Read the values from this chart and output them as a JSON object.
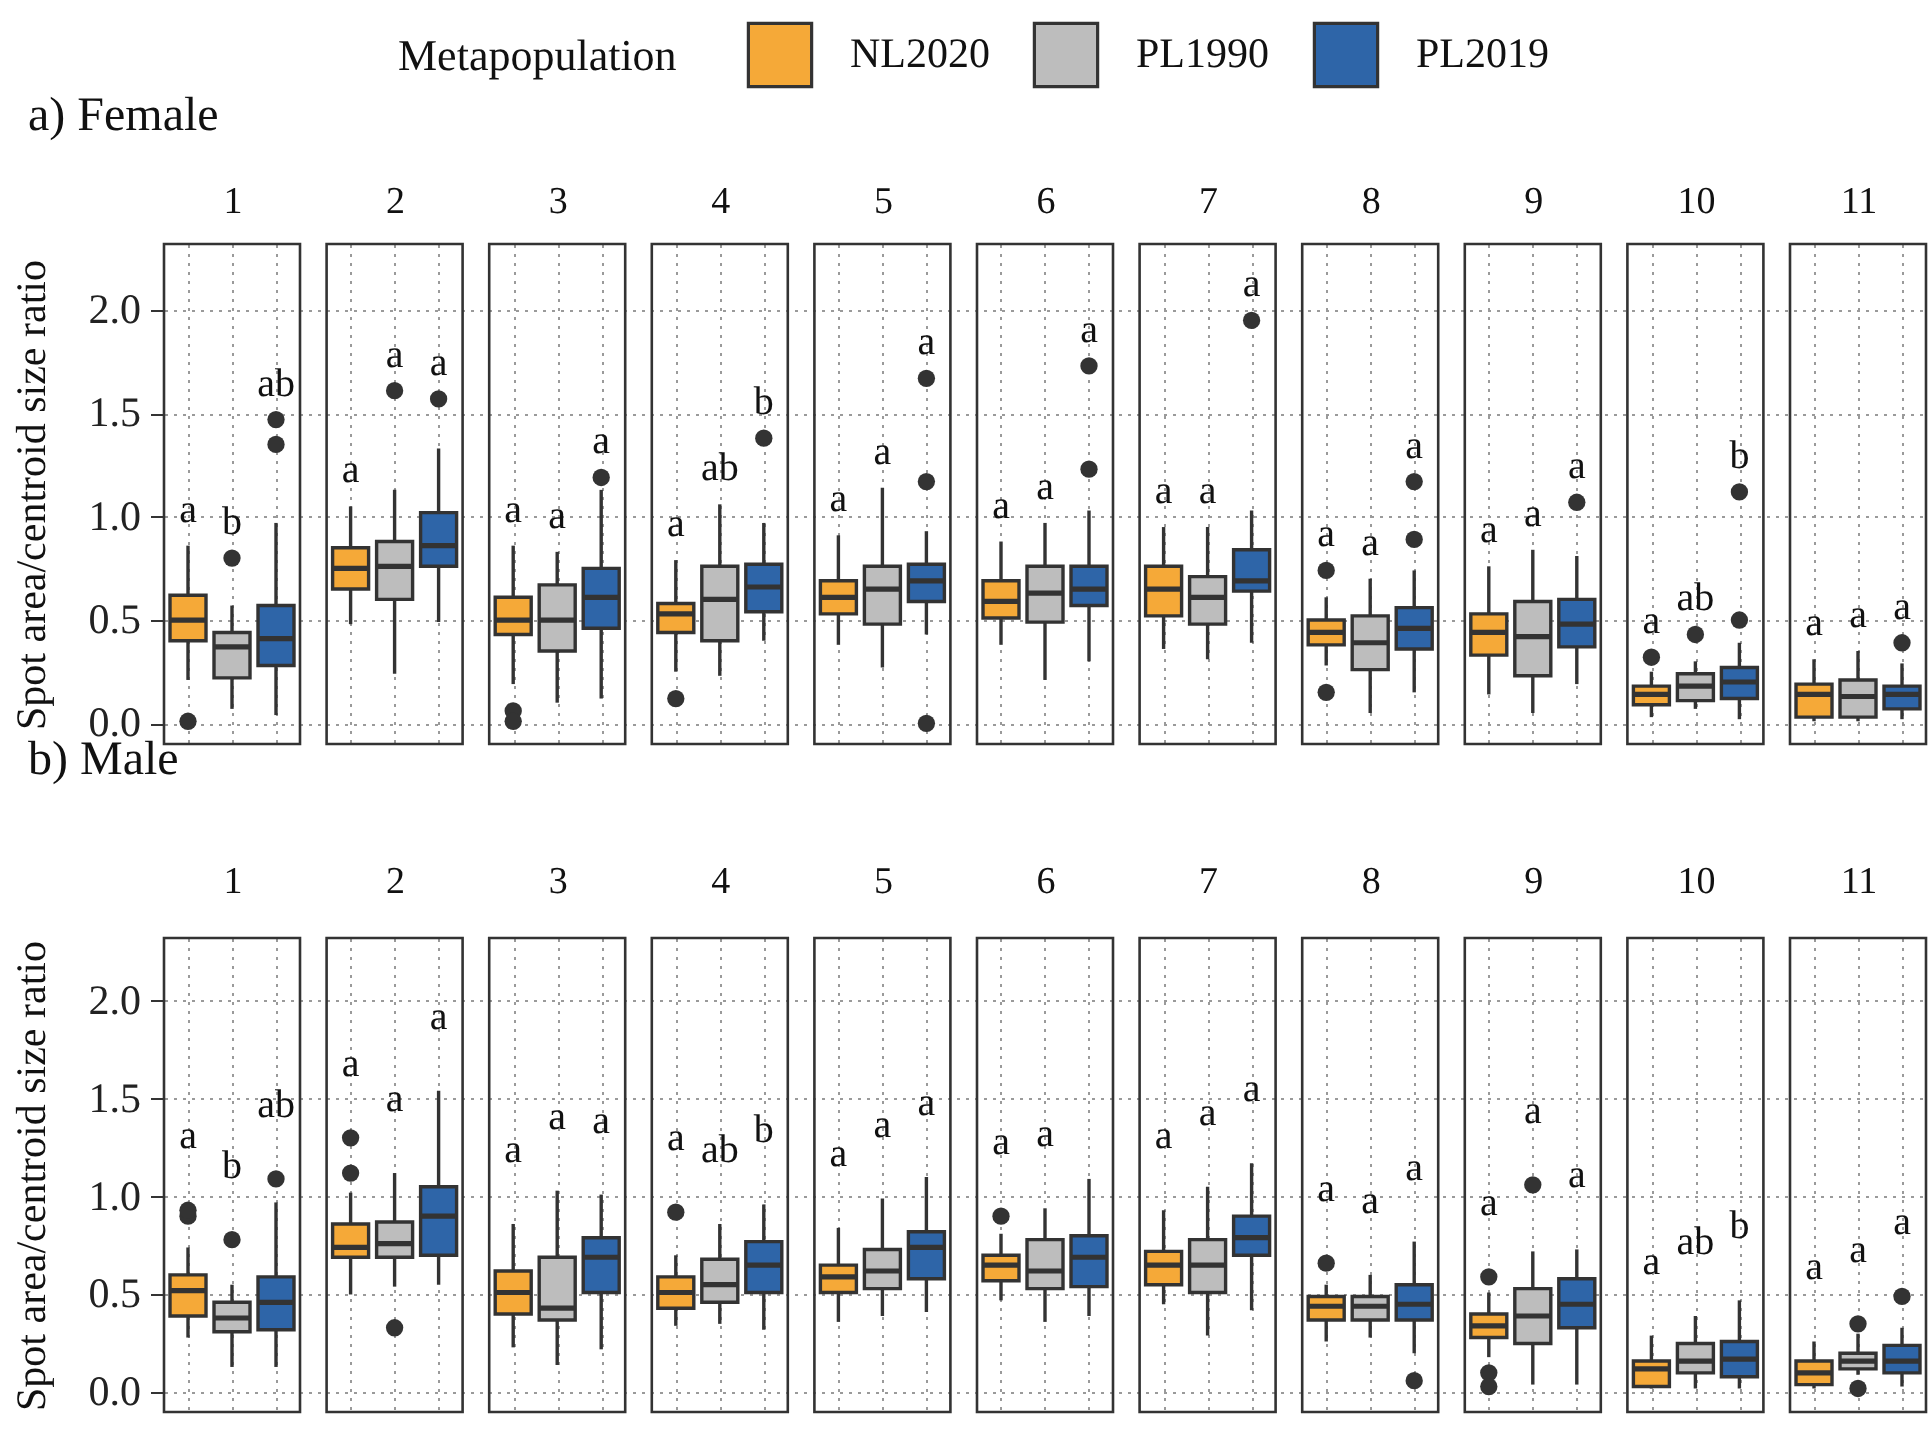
{
  "chart_data": [
    {
      "type": "box",
      "title": "a) Female",
      "ylabel": "Spot area/centroid size ratio",
      "legend": "top",
      "legend_title": "Metapopulation",
      "grid": true,
      "categories": [
        "1",
        "2",
        "3",
        "4",
        "5",
        "6",
        "7",
        "8",
        "9",
        "10",
        "11"
      ],
      "ylim": [
        -0.1,
        2.32
      ],
      "yticks": [
        {
          "value": 0,
          "label": "0.0"
        },
        {
          "value": 0.5,
          "label": "0.5"
        },
        {
          "value": 1,
          "label": "1.0"
        },
        {
          "value": 1.5,
          "label": "1.5"
        },
        {
          "value": 2,
          "label": "2.0"
        }
      ],
      "series": [
        {
          "name": "NL2020",
          "color": "#f5a938",
          "value_labels": [
            "a",
            "a",
            "a",
            "a",
            "a",
            "a",
            "a",
            "a",
            "a",
            "a",
            "a"
          ],
          "boxes": [
            {
              "low": 0.21,
              "q1": 0.4,
              "median": 0.5,
              "q3": 0.62,
              "high": 0.86,
              "outliers": [
                0.01
              ]
            },
            {
              "low": 0.48,
              "q1": 0.65,
              "median": 0.75,
              "q3": 0.85,
              "high": 1.05
            },
            {
              "low": 0.19,
              "q1": 0.43,
              "median": 0.5,
              "q3": 0.61,
              "high": 0.86,
              "outliers": [
                0.06,
                0.01
              ]
            },
            {
              "low": 0.25,
              "q1": 0.44,
              "median": 0.53,
              "q3": 0.58,
              "high": 0.79,
              "outliers": [
                0.12
              ]
            },
            {
              "low": 0.38,
              "q1": 0.53,
              "median": 0.61,
              "q3": 0.69,
              "high": 0.91
            },
            {
              "low": 0.38,
              "q1": 0.51,
              "median": 0.59,
              "q3": 0.69,
              "high": 0.88
            },
            {
              "low": 0.36,
              "q1": 0.52,
              "median": 0.65,
              "q3": 0.76,
              "high": 0.95
            },
            {
              "low": 0.28,
              "q1": 0.38,
              "median": 0.44,
              "q3": 0.5,
              "high": 0.61,
              "outliers": [
                0.74,
                0.15
              ]
            },
            {
              "low": 0.14,
              "q1": 0.33,
              "median": 0.44,
              "q3": 0.53,
              "high": 0.76
            },
            {
              "low": 0.03,
              "q1": 0.09,
              "median": 0.14,
              "q3": 0.18,
              "high": 0.25,
              "outliers": [
                0.32
              ]
            },
            {
              "low": 0.01,
              "q1": 0.03,
              "median": 0.14,
              "q3": 0.19,
              "high": 0.31
            }
          ]
        },
        {
          "name": "PL1990",
          "color": "#bdbdbd",
          "value_labels": [
            "b",
            "a",
            "a",
            "ab",
            "a",
            "a",
            "a",
            "a",
            "a",
            "ab",
            "a"
          ],
          "boxes": [
            {
              "low": 0.07,
              "q1": 0.22,
              "median": 0.37,
              "q3": 0.44,
              "high": 0.57,
              "outliers": [
                0.8
              ]
            },
            {
              "low": 0.24,
              "q1": 0.6,
              "median": 0.76,
              "q3": 0.88,
              "high": 1.13,
              "outliers": [
                1.61
              ]
            },
            {
              "low": 0.1,
              "q1": 0.35,
              "median": 0.5,
              "q3": 0.67,
              "high": 0.83
            },
            {
              "low": 0.23,
              "q1": 0.4,
              "median": 0.6,
              "q3": 0.76,
              "high": 1.06
            },
            {
              "low": 0.27,
              "q1": 0.48,
              "median": 0.65,
              "q3": 0.76,
              "high": 1.14
            },
            {
              "low": 0.21,
              "q1": 0.49,
              "median": 0.63,
              "q3": 0.76,
              "high": 0.97
            },
            {
              "low": 0.31,
              "q1": 0.48,
              "median": 0.61,
              "q3": 0.71,
              "high": 0.95
            },
            {
              "low": 0.05,
              "q1": 0.26,
              "median": 0.39,
              "q3": 0.52,
              "high": 0.7
            },
            {
              "low": 0.05,
              "q1": 0.23,
              "median": 0.42,
              "q3": 0.59,
              "high": 0.84
            },
            {
              "low": 0.07,
              "q1": 0.11,
              "median": 0.18,
              "q3": 0.24,
              "high": 0.3,
              "outliers": [
                0.43
              ]
            },
            {
              "low": 0.01,
              "q1": 0.03,
              "median": 0.13,
              "q3": 0.21,
              "high": 0.35
            }
          ]
        },
        {
          "name": "PL2019",
          "color": "#2e65a8",
          "value_labels": [
            "ab",
            "a",
            "a",
            "b",
            "a",
            "a",
            "a",
            "a",
            "a",
            "b",
            "a"
          ],
          "boxes": [
            {
              "low": 0.04,
              "q1": 0.28,
              "median": 0.41,
              "q3": 0.57,
              "high": 0.97,
              "outliers": [
                1.35,
                1.47
              ]
            },
            {
              "low": 0.49,
              "q1": 0.76,
              "median": 0.86,
              "q3": 1.02,
              "high": 1.33,
              "outliers": [
                1.57
              ]
            },
            {
              "low": 0.12,
              "q1": 0.46,
              "median": 0.61,
              "q3": 0.75,
              "high": 1.13,
              "outliers": [
                1.19
              ]
            },
            {
              "low": 0.4,
              "q1": 0.54,
              "median": 0.66,
              "q3": 0.77,
              "high": 0.97,
              "outliers": [
                1.38
              ]
            },
            {
              "low": 0.43,
              "q1": 0.59,
              "median": 0.69,
              "q3": 0.77,
              "high": 0.93,
              "outliers": [
                1.17,
                1.67,
                0.0
              ]
            },
            {
              "low": 0.3,
              "q1": 0.57,
              "median": 0.65,
              "q3": 0.76,
              "high": 1.03,
              "outliers": [
                1.23,
                1.73
              ]
            },
            {
              "low": 0.39,
              "q1": 0.64,
              "median": 0.69,
              "q3": 0.84,
              "high": 1.03,
              "outliers": [
                1.95
              ]
            },
            {
              "low": 0.15,
              "q1": 0.36,
              "median": 0.46,
              "q3": 0.56,
              "high": 0.74,
              "outliers": [
                0.89,
                1.17
              ]
            },
            {
              "low": 0.19,
              "q1": 0.37,
              "median": 0.48,
              "q3": 0.6,
              "high": 0.81,
              "outliers": [
                1.07
              ]
            },
            {
              "low": 0.02,
              "q1": 0.12,
              "median": 0.2,
              "q3": 0.27,
              "high": 0.39,
              "outliers": [
                0.5,
                1.12
              ]
            },
            {
              "low": 0.02,
              "q1": 0.07,
              "median": 0.14,
              "q3": 0.18,
              "high": 0.29,
              "outliers": [
                0.39
              ]
            }
          ]
        }
      ]
    },
    {
      "type": "box",
      "title": "b) Male",
      "ylabel": "Spot area/centroid size ratio",
      "grid": true,
      "categories": [
        "1",
        "2",
        "3",
        "4",
        "5",
        "6",
        "7",
        "8",
        "9",
        "10",
        "11"
      ],
      "ylim": [
        -0.1,
        2.32
      ],
      "yticks": [
        {
          "value": 0,
          "label": "0.0"
        },
        {
          "value": 0.5,
          "label": "0.5"
        },
        {
          "value": 1,
          "label": "1.0"
        },
        {
          "value": 1.5,
          "label": "1.5"
        },
        {
          "value": 2,
          "label": "2.0"
        }
      ],
      "series": [
        {
          "color": "#f5a938",
          "value_labels": [
            "a",
            "a",
            "a",
            "a",
            "a",
            "a",
            "a",
            "a",
            "a",
            "a",
            "a"
          ],
          "boxes": [
            {
              "low": 0.28,
              "q1": 0.39,
              "median": 0.52,
              "q3": 0.6,
              "high": 0.74,
              "outliers": [
                0.9,
                0.93
              ]
            },
            {
              "low": 0.5,
              "q1": 0.69,
              "median": 0.74,
              "q3": 0.86,
              "high": 1.02,
              "outliers": [
                1.12,
                1.3
              ]
            },
            {
              "low": 0.23,
              "q1": 0.4,
              "median": 0.51,
              "q3": 0.62,
              "high": 0.86
            },
            {
              "low": 0.34,
              "q1": 0.43,
              "median": 0.51,
              "q3": 0.59,
              "high": 0.7,
              "outliers": [
                0.92
              ]
            },
            {
              "low": 0.36,
              "q1": 0.51,
              "median": 0.59,
              "q3": 0.65,
              "high": 0.84
            },
            {
              "low": 0.47,
              "q1": 0.57,
              "median": 0.65,
              "q3": 0.7,
              "high": 0.81,
              "outliers": [
                0.9
              ]
            },
            {
              "low": 0.45,
              "q1": 0.55,
              "median": 0.65,
              "q3": 0.72,
              "high": 0.93
            },
            {
              "low": 0.26,
              "q1": 0.37,
              "median": 0.44,
              "q3": 0.49,
              "high": 0.55,
              "outliers": [
                0.66
              ]
            },
            {
              "low": 0.18,
              "q1": 0.28,
              "median": 0.34,
              "q3": 0.4,
              "high": 0.51,
              "outliers": [
                0.59,
                0.1,
                0.03
              ]
            },
            {
              "low": 0.02,
              "q1": 0.03,
              "median": 0.12,
              "q3": 0.16,
              "high": 0.29
            },
            {
              "low": 0.02,
              "q1": 0.04,
              "median": 0.1,
              "q3": 0.16,
              "high": 0.26
            }
          ]
        },
        {
          "color": "#bdbdbd",
          "value_labels": [
            "b",
            "a",
            "a",
            "ab",
            "a",
            "a",
            "a",
            "a",
            "a",
            "ab",
            "a"
          ],
          "boxes": [
            {
              "low": 0.13,
              "q1": 0.31,
              "median": 0.38,
              "q3": 0.46,
              "high": 0.55,
              "outliers": [
                0.78
              ]
            },
            {
              "low": 0.54,
              "q1": 0.69,
              "median": 0.76,
              "q3": 0.87,
              "high": 1.12,
              "outliers": [
                0.33
              ]
            },
            {
              "low": 0.14,
              "q1": 0.37,
              "median": 0.43,
              "q3": 0.69,
              "high": 1.03
            },
            {
              "low": 0.35,
              "q1": 0.46,
              "median": 0.55,
              "q3": 0.68,
              "high": 0.86
            },
            {
              "low": 0.39,
              "q1": 0.53,
              "median": 0.62,
              "q3": 0.73,
              "high": 0.99
            },
            {
              "low": 0.36,
              "q1": 0.53,
              "median": 0.62,
              "q3": 0.78,
              "high": 0.94
            },
            {
              "low": 0.29,
              "q1": 0.51,
              "median": 0.65,
              "q3": 0.78,
              "high": 1.05
            },
            {
              "low": 0.28,
              "q1": 0.37,
              "median": 0.44,
              "q3": 0.49,
              "high": 0.6
            },
            {
              "low": 0.04,
              "q1": 0.25,
              "median": 0.39,
              "q3": 0.53,
              "high": 0.72,
              "outliers": [
                1.06
              ]
            },
            {
              "low": 0.02,
              "q1": 0.1,
              "median": 0.16,
              "q3": 0.25,
              "high": 0.39
            },
            {
              "low": 0.09,
              "q1": 0.12,
              "median": 0.16,
              "q3": 0.2,
              "high": 0.3,
              "outliers": [
                0.35,
                0.02
              ]
            }
          ]
        },
        {
          "color": "#2e65a8",
          "value_labels": [
            "ab",
            "a",
            "a",
            "b",
            "a",
            null,
            "a",
            "a",
            "a",
            "b",
            "a"
          ],
          "boxes": [
            {
              "low": 0.13,
              "q1": 0.32,
              "median": 0.46,
              "q3": 0.59,
              "high": 0.97,
              "outliers": [
                1.09
              ]
            },
            {
              "low": 0.55,
              "q1": 0.7,
              "median": 0.9,
              "q3": 1.05,
              "high": 1.54
            },
            {
              "low": 0.22,
              "q1": 0.51,
              "median": 0.69,
              "q3": 0.79,
              "high": 1.01
            },
            {
              "low": 0.32,
              "q1": 0.51,
              "median": 0.65,
              "q3": 0.77,
              "high": 0.96
            },
            {
              "low": 0.41,
              "q1": 0.58,
              "median": 0.74,
              "q3": 0.82,
              "high": 1.1
            },
            {
              "low": 0.39,
              "q1": 0.54,
              "median": 0.69,
              "q3": 0.8,
              "high": 1.09
            },
            {
              "low": 0.42,
              "q1": 0.7,
              "median": 0.79,
              "q3": 0.9,
              "high": 1.17
            },
            {
              "low": 0.2,
              "q1": 0.37,
              "median": 0.45,
              "q3": 0.55,
              "high": 0.77,
              "outliers": [
                0.06
              ]
            },
            {
              "low": 0.04,
              "q1": 0.33,
              "median": 0.45,
              "q3": 0.58,
              "high": 0.73
            },
            {
              "low": 0.02,
              "q1": 0.08,
              "median": 0.17,
              "q3": 0.26,
              "high": 0.47
            },
            {
              "low": 0.03,
              "q1": 0.1,
              "median": 0.16,
              "q3": 0.24,
              "high": 0.33,
              "outliers": [
                0.49
              ]
            }
          ]
        }
      ]
    }
  ]
}
